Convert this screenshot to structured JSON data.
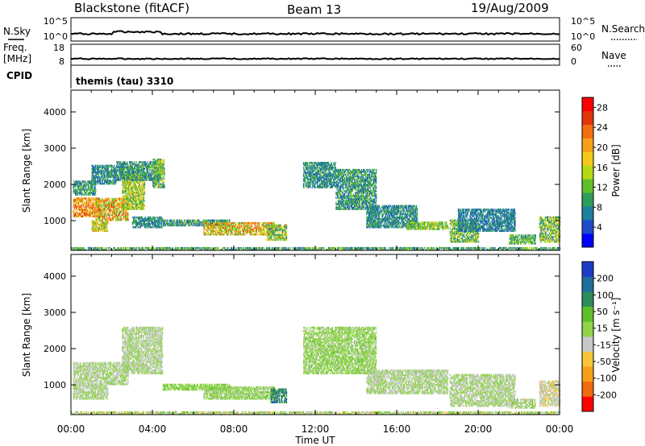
{
  "header": {
    "station": "Blackstone (fitACF)",
    "beam": "Beam 13",
    "date": "19/Aug/2009"
  },
  "status_panels": {
    "nsky": {
      "label": "N.Sky",
      "ticks": [
        "10^5",
        "10^0"
      ]
    },
    "nsearch": {
      "label": "N.Search",
      "ticks": [
        "10^5",
        "10^0"
      ]
    },
    "freq": {
      "label_line1": "Freq.",
      "label_line2": "[MHz]",
      "ticks": [
        "18",
        "8"
      ]
    },
    "nave": {
      "label": "Nave",
      "ticks": [
        "60",
        "0"
      ]
    },
    "cpid": {
      "label": "CPID",
      "value": "themis (tau) 3310"
    }
  },
  "colors": {
    "power": [
      "#0000ff",
      "#1c4cc8",
      "#1f7f9c",
      "#2e9c5c",
      "#5fbf2a",
      "#b5d914",
      "#f6c81a",
      "#f6a01a",
      "#f46e0f",
      "#e2360a",
      "#ff0000"
    ],
    "velocity": [
      "#ff0000",
      "#f06a0e",
      "#f6a01a",
      "#f5c43a",
      "#c8c8c8",
      "#8fd44a",
      "#5fbf2a",
      "#2e8c5c",
      "#1f6f9c",
      "#1c3cc8"
    ]
  },
  "chart_data": [
    {
      "type": "heatmap",
      "name": "power",
      "xlabel": "",
      "ylabel": "Slant Range [km]",
      "xlim": [
        0,
        24
      ],
      "ylim": [
        180,
        4600
      ],
      "yticks": [
        1000,
        2000,
        3000,
        4000
      ],
      "colorbar": {
        "label": "Power [dB]",
        "ticks": [
          "4",
          "8",
          "12",
          "16",
          "20",
          "24",
          "28"
        ],
        "range": [
          0,
          30
        ]
      },
      "regions": [
        {
          "t0": 0.1,
          "t1": 1.4,
          "r0": 1100,
          "r1": 1600,
          "v0": 14,
          "v1": 28
        },
        {
          "t0": 1.2,
          "t1": 2.8,
          "r0": 1000,
          "r1": 1600,
          "v0": 10,
          "v1": 26
        },
        {
          "t0": 2.5,
          "t1": 3.6,
          "r0": 1300,
          "r1": 2300,
          "v0": 8,
          "v1": 20
        },
        {
          "t0": 0.1,
          "t1": 1.2,
          "r0": 1700,
          "r1": 2100,
          "v0": 4,
          "v1": 14
        },
        {
          "t0": 1.0,
          "t1": 2.2,
          "r0": 2000,
          "r1": 2500,
          "v0": 4,
          "v1": 12
        },
        {
          "t0": 2.2,
          "t1": 4.4,
          "r0": 2100,
          "r1": 2600,
          "v0": 4,
          "v1": 14
        },
        {
          "t0": 4.0,
          "t1": 4.6,
          "r0": 1900,
          "r1": 2700,
          "v0": 6,
          "v1": 18
        },
        {
          "t0": 1.0,
          "t1": 1.8,
          "r0": 700,
          "r1": 1000,
          "v0": 10,
          "v1": 22
        },
        {
          "t0": 3.0,
          "t1": 4.5,
          "r0": 800,
          "r1": 1100,
          "v0": 4,
          "v1": 12
        },
        {
          "t0": 4.5,
          "t1": 7.8,
          "r0": 850,
          "r1": 1000,
          "v0": 4,
          "v1": 14
        },
        {
          "t0": 6.5,
          "t1": 10.0,
          "r0": 600,
          "r1": 950,
          "v0": 10,
          "v1": 26
        },
        {
          "t0": 9.6,
          "t1": 10.6,
          "r0": 450,
          "r1": 900,
          "v0": 6,
          "v1": 20
        },
        {
          "t0": 11.4,
          "t1": 13.0,
          "r0": 1900,
          "r1": 2600,
          "v0": 4,
          "v1": 12
        },
        {
          "t0": 13.0,
          "t1": 15.0,
          "r0": 1300,
          "r1": 2400,
          "v0": 4,
          "v1": 14
        },
        {
          "t0": 14.5,
          "t1": 17.0,
          "r0": 800,
          "r1": 1400,
          "v0": 4,
          "v1": 12
        },
        {
          "t0": 16.5,
          "t1": 18.5,
          "r0": 750,
          "r1": 950,
          "v0": 8,
          "v1": 18
        },
        {
          "t0": 18.6,
          "t1": 20.0,
          "r0": 400,
          "r1": 1000,
          "v0": 6,
          "v1": 18
        },
        {
          "t0": 19.0,
          "t1": 21.8,
          "r0": 700,
          "r1": 1300,
          "v0": 4,
          "v1": 10
        },
        {
          "t0": 21.5,
          "t1": 22.8,
          "r0": 350,
          "r1": 600,
          "v0": 6,
          "v1": 16
        },
        {
          "t0": 23.0,
          "t1": 24.0,
          "r0": 400,
          "r1": 1100,
          "v0": 6,
          "v1": 20
        },
        {
          "t0": 0.0,
          "t1": 24.0,
          "r0": 180,
          "r1": 260,
          "v0": 4,
          "v1": 16
        }
      ]
    },
    {
      "type": "heatmap",
      "name": "velocity",
      "xlabel": "Time UT",
      "ylabel": "Slant Range [km]",
      "xlim": [
        0,
        24
      ],
      "ylim": [
        180,
        4600
      ],
      "xticks": [
        "00:00",
        "04:00",
        "08:00",
        "12:00",
        "16:00",
        "20:00",
        "00:00"
      ],
      "yticks": [
        1000,
        2000,
        3000,
        4000
      ],
      "colorbar": {
        "label": "Velocity [m s⁻¹]",
        "ticks": [
          "-200",
          "-100",
          "-50",
          "-15",
          "15",
          "50",
          "100",
          "200"
        ],
        "range": [
          -250,
          250
        ]
      },
      "regions": [
        {
          "t0": 0.1,
          "t1": 2.8,
          "r0": 1000,
          "r1": 1600,
          "v0": -15,
          "v1": 15
        },
        {
          "t0": 2.5,
          "t1": 4.5,
          "r0": 1300,
          "r1": 2600,
          "v0": -15,
          "v1": 15
        },
        {
          "t0": 0.1,
          "t1": 1.8,
          "r0": 600,
          "r1": 1000,
          "v0": -15,
          "v1": 15
        },
        {
          "t0": 4.5,
          "t1": 7.8,
          "r0": 850,
          "r1": 1000,
          "v0": 15,
          "v1": 60
        },
        {
          "t0": 6.5,
          "t1": 10.0,
          "r0": 600,
          "r1": 950,
          "v0": -15,
          "v1": 60
        },
        {
          "t0": 9.8,
          "t1": 10.6,
          "r0": 500,
          "r1": 900,
          "v0": 60,
          "v1": 220
        },
        {
          "t0": 11.4,
          "t1": 15.0,
          "r0": 1300,
          "r1": 2600,
          "v0": -15,
          "v1": 60
        },
        {
          "t0": 14.5,
          "t1": 18.5,
          "r0": 750,
          "r1": 1400,
          "v0": -15,
          "v1": 15
        },
        {
          "t0": 18.6,
          "t1": 21.8,
          "r0": 400,
          "r1": 1300,
          "v0": -15,
          "v1": 15
        },
        {
          "t0": 21.5,
          "t1": 22.8,
          "r0": 350,
          "r1": 600,
          "v0": -60,
          "v1": 60
        },
        {
          "t0": 23.0,
          "t1": 24.0,
          "r0": 400,
          "r1": 1100,
          "v0": -80,
          "v1": 15
        },
        {
          "t0": 0.0,
          "t1": 24.0,
          "r0": 180,
          "r1": 260,
          "v0": -80,
          "v1": 80
        }
      ]
    }
  ]
}
